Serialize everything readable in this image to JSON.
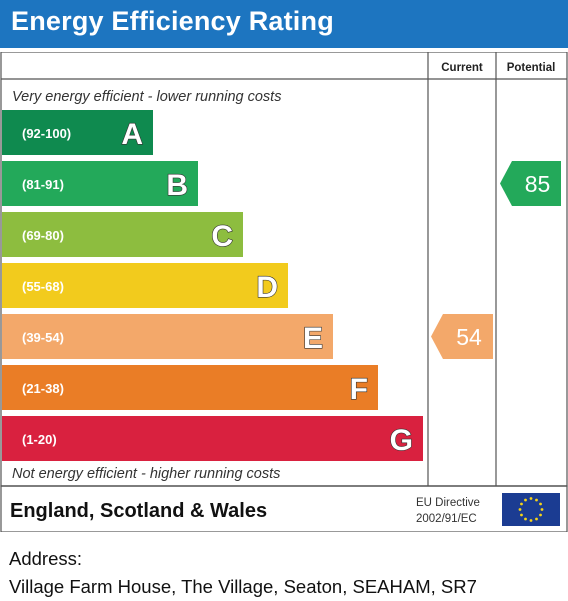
{
  "title": "Energy Efficiency Rating",
  "chart_data": {
    "type": "bar",
    "columns": [
      "Current",
      "Potential"
    ],
    "top_caption": "Very energy efficient - lower running costs",
    "bottom_caption": "Not energy efficient - higher running costs",
    "bands": [
      {
        "letter": "A",
        "range": "(92-100)",
        "color": "#0f8a4f"
      },
      {
        "letter": "B",
        "range": "(81-91)",
        "color": "#23a95a"
      },
      {
        "letter": "C",
        "range": "(69-80)",
        "color": "#8dbd3f"
      },
      {
        "letter": "D",
        "range": "(55-68)",
        "color": "#f2cb1d"
      },
      {
        "letter": "E",
        "range": "(39-54)",
        "color": "#f3a86a"
      },
      {
        "letter": "F",
        "range": "(21-38)",
        "color": "#ea7d26"
      },
      {
        "letter": "G",
        "range": "(1-20)",
        "color": "#d9213f"
      }
    ],
    "current": {
      "value": 54,
      "band": "E",
      "color": "#f3a86a"
    },
    "potential": {
      "value": 85,
      "band": "B",
      "color": "#23a95a"
    }
  },
  "footer": {
    "region": "England, Scotland & Wales",
    "directive_line1": "EU Directive",
    "directive_line2": "2002/91/EC"
  },
  "address": {
    "label": "Address:",
    "value": "Village Farm House, The Village, Seaton, SEAHAM, SR7"
  }
}
